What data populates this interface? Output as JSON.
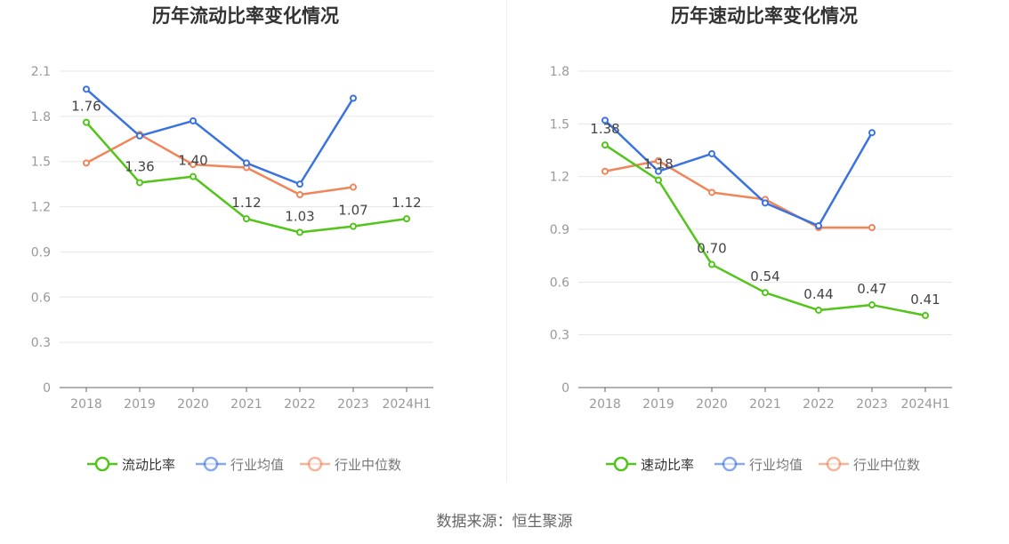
{
  "chart_data": [
    {
      "type": "line",
      "title": "历年流动比率变化情况",
      "categories": [
        "2018",
        "2019",
        "2020",
        "2021",
        "2022",
        "2023",
        "2024H1"
      ],
      "y_ticks": [
        "0",
        "0.3",
        "0.6",
        "0.9",
        "1.2",
        "1.5",
        "1.8",
        "2.1"
      ],
      "ylim": [
        0,
        2.1
      ],
      "grid": true,
      "legend_position": "bottom",
      "series": [
        {
          "name": "流动比率",
          "color": "#52c41a",
          "values": [
            1.76,
            1.36,
            1.4,
            1.12,
            1.03,
            1.07,
            1.12
          ],
          "labels": [
            "1.76",
            "1.36",
            "1.40",
            "1.12",
            "1.03",
            "1.07",
            "1.12"
          ]
        },
        {
          "name": "行业均值",
          "color": "#3a73e0",
          "values": [
            1.98,
            1.67,
            1.77,
            1.49,
            1.35,
            1.92,
            null
          ]
        },
        {
          "name": "行业中位数",
          "color": "#f0855a",
          "values": [
            1.49,
            1.68,
            1.48,
            1.46,
            1.28,
            1.33,
            null
          ]
        }
      ]
    },
    {
      "type": "line",
      "title": "历年速动比率变化情况",
      "categories": [
        "2018",
        "2019",
        "2020",
        "2021",
        "2022",
        "2023",
        "2024H1"
      ],
      "y_ticks": [
        "0",
        "0.3",
        "0.6",
        "0.9",
        "1.2",
        "1.5",
        "1.8"
      ],
      "ylim": [
        0,
        1.8
      ],
      "grid": true,
      "legend_position": "bottom",
      "series": [
        {
          "name": "速动比率",
          "color": "#52c41a",
          "values": [
            1.38,
            1.18,
            0.7,
            0.54,
            0.44,
            0.47,
            0.41
          ],
          "labels": [
            "1.38",
            "1.18",
            "0.70",
            "0.54",
            "0.44",
            "0.47",
            "0.41"
          ]
        },
        {
          "name": "行业均值",
          "color": "#3a73e0",
          "values": [
            1.52,
            1.23,
            1.33,
            1.05,
            0.92,
            1.45,
            null
          ]
        },
        {
          "name": "行业中位数",
          "color": "#f0855a",
          "values": [
            1.23,
            1.29,
            1.11,
            1.07,
            0.91,
            0.91,
            null
          ]
        }
      ]
    }
  ],
  "source_text": "数据来源：恒生聚源"
}
